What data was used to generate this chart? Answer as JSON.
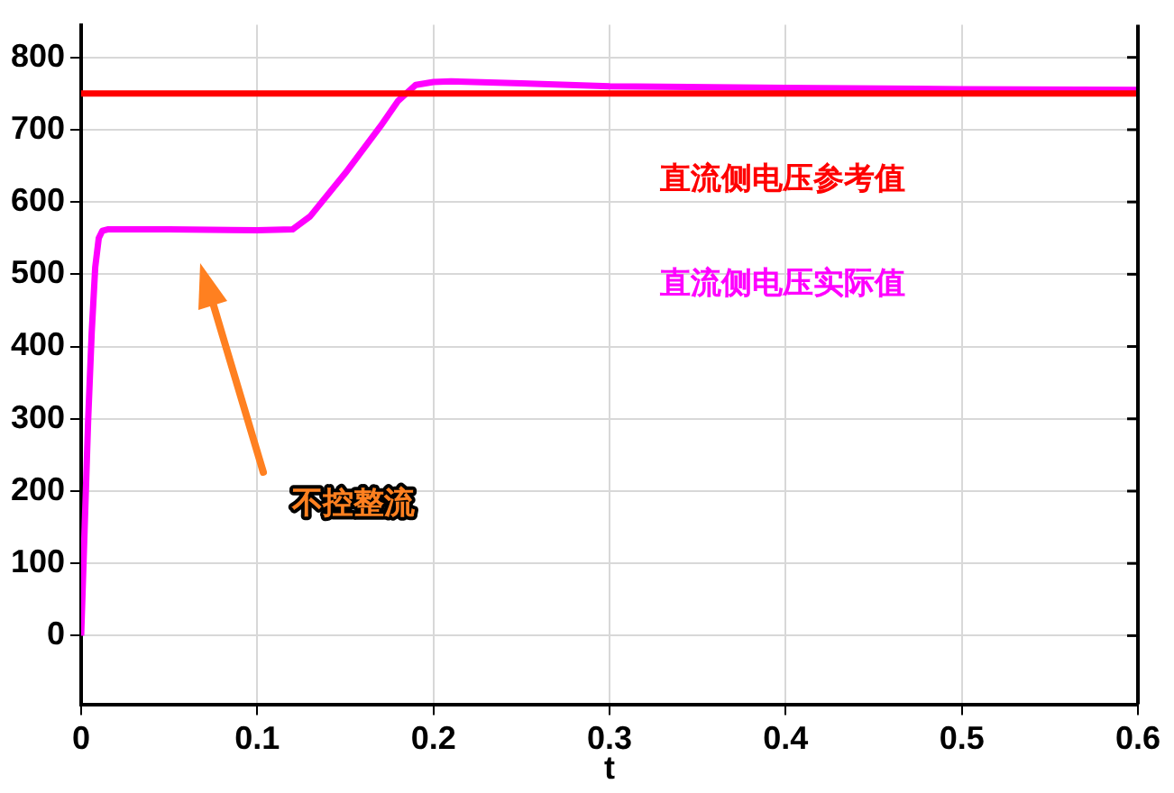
{
  "chart_data": {
    "type": "line",
    "xlabel": "t",
    "xlim": [
      0,
      0.6
    ],
    "xticks": [
      0,
      0.1,
      0.2,
      0.3,
      0.4,
      0.5,
      0.6
    ],
    "ylim": [
      -95,
      845
    ],
    "yticks": [
      0,
      100,
      200,
      300,
      400,
      500,
      600,
      700,
      800
    ],
    "grid": true,
    "legend": false,
    "marker": "none",
    "line_style": "solid",
    "series": [
      {
        "name": "直流侧电压参考值",
        "color": "#ff0000",
        "x": [
          0,
          0.6
        ],
        "values": [
          750,
          750
        ]
      },
      {
        "name": "直流侧电压实际值",
        "color": "#ff00ff",
        "x": [
          0,
          0.002,
          0.004,
          0.006,
          0.008,
          0.01,
          0.012,
          0.015,
          0.05,
          0.1,
          0.12,
          0.13,
          0.15,
          0.17,
          0.18,
          0.19,
          0.2,
          0.21,
          0.25,
          0.3,
          0.4,
          0.5,
          0.6
        ],
        "values": [
          0,
          150,
          300,
          420,
          510,
          550,
          560,
          562,
          562,
          561,
          562,
          580,
          640,
          705,
          740,
          762,
          766,
          767,
          764,
          760,
          758,
          756,
          755
        ]
      }
    ],
    "annotations": [
      "不控整流"
    ]
  }
}
